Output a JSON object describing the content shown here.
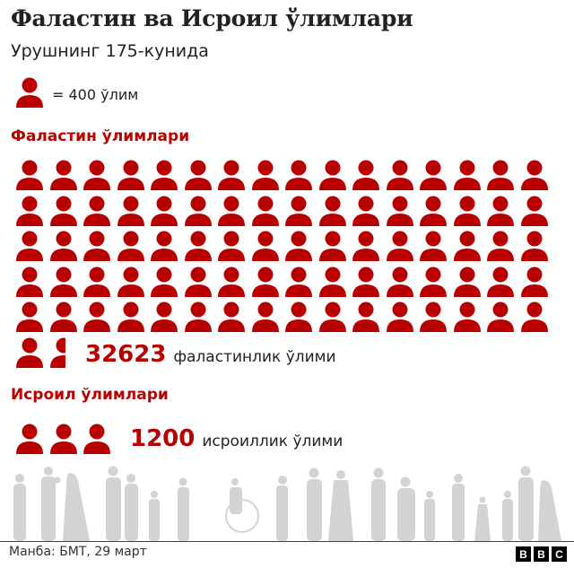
{
  "title": "Фаластин ва Исроил ўлимлари",
  "subtitle": "Урушнинг 175-кунида",
  "legend": {
    "icon": "person-icon",
    "text": "= 400 ўлим",
    "unit_value": 400
  },
  "palestine": {
    "heading": "Фаластин ўлимлари",
    "count": "32623",
    "label": "фаластинлик ўлими"
  },
  "israel": {
    "heading": "Исроил ўлимлари",
    "count": "1200",
    "label": "исроиллик ўлими"
  },
  "footer": {
    "source": "Манба: БМТ, 29 март",
    "logo": [
      "B",
      "B",
      "C"
    ]
  },
  "colors": {
    "accent": "#b80000",
    "text": "#222222",
    "silhouette": "#d3d3d3"
  },
  "chart_data": {
    "type": "pictogram",
    "title": "Фаластин ва Исроил ўлимлари",
    "subtitle": "Урушнинг 175-кунида",
    "unit": "= 400 ўлим",
    "unit_value": 400,
    "categories": [
      "Фаластин ўлимлари",
      "Исроил ўлимлари"
    ],
    "values": [
      32623,
      1200
    ],
    "icons": [
      81.56,
      3
    ],
    "grid_columns": 16,
    "labels": [
      "32623 фаластинлик ўлими",
      "1200 исроиллик ўлими"
    ],
    "source": "Манба: БМТ, 29 март"
  }
}
